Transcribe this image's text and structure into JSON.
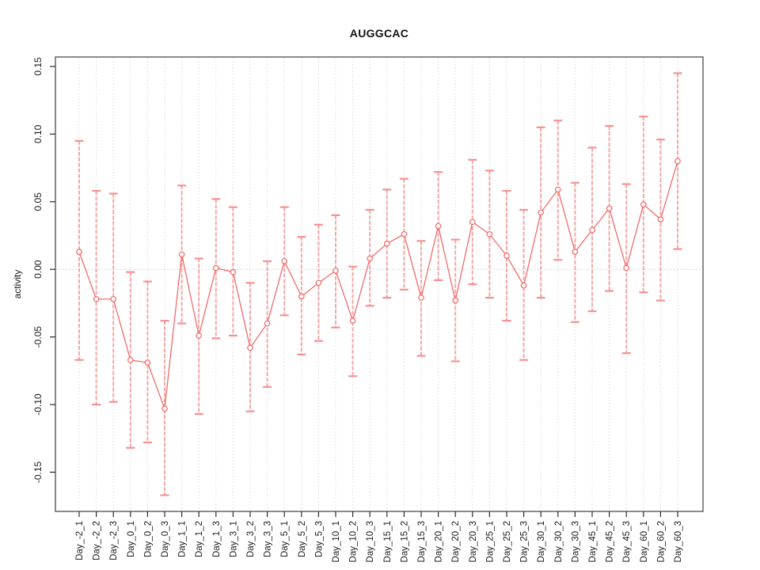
{
  "chart_data": {
    "type": "line",
    "title": "AUGGCAC",
    "xlabel": "",
    "ylabel": "activity",
    "legend": null,
    "grid": "vertical-dotted",
    "zero_line": true,
    "ylim": [
      -0.179,
      0.157
    ],
    "yticks": [
      -0.15,
      -0.1,
      -0.05,
      0.0,
      0.05,
      0.1,
      0.15
    ],
    "ytick_labels": [
      "-0.15",
      "-0.10",
      "-0.05",
      "0.00",
      "0.05",
      "0.10",
      "0.15"
    ],
    "categories": [
      "Day_-2_1",
      "Day_-2_2",
      "Day_-2_3",
      "Day_0_1",
      "Day_0_2",
      "Day_0_3",
      "Day_1_1",
      "Day_1_2",
      "Day_1_3",
      "Day_3_1",
      "Day_3_2",
      "Day_3_3",
      "Day_5_1",
      "Day_5_2",
      "Day_5_3",
      "Day_10_1",
      "Day_10_2",
      "Day_10_3",
      "Day_15_1",
      "Day_15_2",
      "Day_15_3",
      "Day_20_1",
      "Day_20_2",
      "Day_20_3",
      "Day_25_1",
      "Day_25_2",
      "Day_25_3",
      "Day_30_1",
      "Day_30_2",
      "Day_30_3",
      "Day_45_1",
      "Day_45_2",
      "Day_45_3",
      "Day_60_1",
      "Day_60_2",
      "Day_60_3"
    ],
    "series": [
      {
        "name": "activity",
        "values": [
          0.013,
          -0.022,
          -0.022,
          -0.067,
          -0.069,
          -0.103,
          0.011,
          -0.049,
          0.001,
          -0.002,
          -0.058,
          -0.04,
          0.006,
          -0.02,
          -0.01,
          -0.001,
          -0.038,
          0.008,
          0.019,
          0.026,
          -0.021,
          0.032,
          -0.023,
          0.035,
          0.026,
          0.01,
          -0.012,
          0.042,
          0.059,
          0.013,
          0.029,
          0.045,
          0.001,
          0.048,
          0.037,
          0.08
        ],
        "lower": [
          -0.067,
          -0.1,
          -0.098,
          -0.132,
          -0.128,
          -0.167,
          -0.04,
          -0.107,
          -0.051,
          -0.049,
          -0.105,
          -0.087,
          -0.034,
          -0.063,
          -0.053,
          -0.043,
          -0.079,
          -0.027,
          -0.021,
          -0.015,
          -0.064,
          -0.008,
          -0.068,
          -0.011,
          -0.021,
          -0.038,
          -0.067,
          -0.021,
          0.007,
          -0.039,
          -0.031,
          -0.016,
          -0.062,
          -0.017,
          -0.023,
          0.015
        ],
        "upper": [
          0.095,
          0.058,
          0.056,
          -0.002,
          -0.009,
          -0.038,
          0.062,
          0.008,
          0.052,
          0.046,
          -0.01,
          0.006,
          0.046,
          0.024,
          0.033,
          0.04,
          0.002,
          0.044,
          0.059,
          0.067,
          0.021,
          0.072,
          0.022,
          0.081,
          0.073,
          0.058,
          0.044,
          0.105,
          0.11,
          0.064,
          0.09,
          0.106,
          0.063,
          0.113,
          0.096,
          0.145
        ]
      }
    ],
    "colors": {
      "series_line": "#f25f5f",
      "marker": "#f4706f",
      "error_bar": "#f68c8c",
      "grid": "#dcdcdc",
      "zero_line": "#cccccc",
      "axis_box": "#6e6e6e",
      "tick": "#2a2a2a",
      "text": "#1a1a1a"
    }
  }
}
